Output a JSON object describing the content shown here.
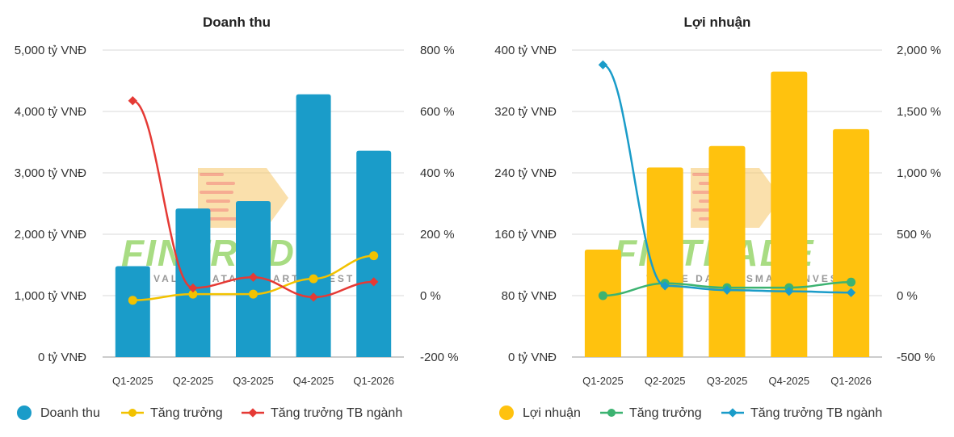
{
  "watermark": {
    "brand": "FINTRADE",
    "tagline": "VALUE DATA - SMART INVEST"
  },
  "chart_data": [
    {
      "type": "bar",
      "title": "Doanh thu",
      "categories": [
        "Q1-2025",
        "Q2-2025",
        "Q3-2025",
        "Q4-2025",
        "Q1-2026"
      ],
      "bar_color": "#1a9cc9",
      "left_ticks": [
        "0 tỷ VNĐ",
        "1,000 tỷ VNĐ",
        "2,000 tỷ VNĐ",
        "3,000 tỷ VNĐ",
        "4,000 tỷ VNĐ",
        "5,000 tỷ VNĐ"
      ],
      "right_ticks": [
        "-200 %",
        "0 %",
        "200 %",
        "400 %",
        "600 %",
        "800 %"
      ],
      "ylim": [
        0,
        5000
      ],
      "y2lim": [
        -200,
        800
      ],
      "bars": {
        "name": "Doanh thu",
        "values": [
          1480,
          2420,
          2540,
          4280,
          3360
        ]
      },
      "lines": [
        {
          "name": "Tăng trưởng",
          "color": "#f2c200",
          "marker": "circle",
          "values": [
            -15,
            5,
            5,
            55,
            130
          ]
        },
        {
          "name": "Tăng trưởng TB ngành",
          "color": "#e53a35",
          "marker": "diamond",
          "values": [
            635,
            25,
            60,
            -5,
            45
          ]
        }
      ],
      "grid": true,
      "legend": "bottom"
    },
    {
      "type": "bar",
      "title": "Lợi nhuận",
      "categories": [
        "Q1-2025",
        "Q2-2025",
        "Q3-2025",
        "Q4-2025",
        "Q1-2026"
      ],
      "bar_color": "#ffc20e",
      "left_ticks": [
        "0 tỷ VNĐ",
        "80 tỷ VNĐ",
        "160 tỷ VNĐ",
        "240 tỷ VNĐ",
        "320 tỷ VNĐ",
        "400 tỷ VNĐ"
      ],
      "right_ticks": [
        "-500 %",
        "0 %",
        "500 %",
        "1,000 %",
        "1,500 %",
        "2,000 %"
      ],
      "ylim": [
        0,
        400
      ],
      "y2lim": [
        -500,
        2000
      ],
      "bars": {
        "name": "Lợi nhuận",
        "values": [
          140,
          247,
          275,
          372,
          297
        ]
      },
      "lines": [
        {
          "name": "Tăng trưởng",
          "color": "#3cb371",
          "marker": "circle",
          "values": [
            0,
            100,
            65,
            65,
            110
          ]
        },
        {
          "name": "Tăng trưởng TB ngành",
          "color": "#1a9cc9",
          "marker": "diamond",
          "values": [
            1880,
            80,
            45,
            35,
            25
          ]
        }
      ],
      "grid": true,
      "legend": "bottom"
    }
  ]
}
